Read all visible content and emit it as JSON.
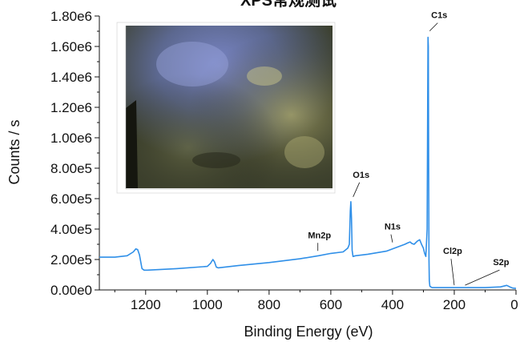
{
  "chart_data": {
    "type": "line",
    "title": "XPS常规测试",
    "xlabel": "Binding Energy (eV)",
    "ylabel": "Counts / s",
    "xlim": [
      1350,
      0
    ],
    "ylim": [
      0,
      1800000
    ],
    "x_reversed": true,
    "grid": false,
    "legend": "none",
    "x_ticks": [
      {
        "value": 1200,
        "label": "1200"
      },
      {
        "value": 1000,
        "label": "1000"
      },
      {
        "value": 800,
        "label": "800"
      },
      {
        "value": 600,
        "label": "600"
      },
      {
        "value": 400,
        "label": "400"
      },
      {
        "value": 200,
        "label": "200"
      },
      {
        "value": 0,
        "label": "0"
      }
    ],
    "y_ticks": [
      {
        "value": 0,
        "label": "0.00e0"
      },
      {
        "value": 200000,
        "label": "2.00e5"
      },
      {
        "value": 400000,
        "label": "4.00e5"
      },
      {
        "value": 600000,
        "label": "6.00e5"
      },
      {
        "value": 800000,
        "label": "8.00e5"
      },
      {
        "value": 1000000,
        "label": "1.00e6"
      },
      {
        "value": 1200000,
        "label": "1.20e6"
      },
      {
        "value": 1400000,
        "label": "1.40e6"
      },
      {
        "value": 1600000,
        "label": "1.60e6"
      },
      {
        "value": 1800000,
        "label": "1.80e6"
      }
    ],
    "series": [
      {
        "color": "#2f8fe8",
        "x": [
          1350,
          1300,
          1260,
          1240,
          1232,
          1226,
          1220,
          1212,
          1205,
          1195,
          1100,
          1000,
          990,
          982,
          977,
          971,
          965,
          900,
          800,
          700,
          640,
          600,
          560,
          545,
          540,
          537,
          535,
          533,
          531,
          528,
          520,
          480,
          420,
          400,
          360,
          350,
          343,
          337,
          330,
          320,
          312,
          306,
          300,
          296,
          292,
          288,
          286,
          285,
          284,
          283,
          282,
          281,
          279,
          276,
          272,
          260,
          200,
          150,
          100,
          50,
          30,
          20,
          10,
          0
        ],
        "y": [
          215000,
          215000,
          225000,
          250000,
          270000,
          265000,
          230000,
          140000,
          130000,
          130000,
          140000,
          155000,
          175000,
          200000,
          185000,
          150000,
          145000,
          160000,
          180000,
          205000,
          225000,
          240000,
          250000,
          275000,
          300000,
          520000,
          580000,
          470000,
          260000,
          220000,
          225000,
          235000,
          255000,
          270000,
          300000,
          310000,
          315000,
          305000,
          300000,
          320000,
          330000,
          300000,
          275000,
          240000,
          220000,
          400000,
          1250000,
          1660000,
          1600000,
          800000,
          200000,
          60000,
          25000,
          20000,
          15000,
          15000,
          15000,
          15000,
          15000,
          20000,
          30000,
          20000,
          12000,
          10000
        ]
      }
    ],
    "annotations": [
      {
        "text": "C1s",
        "x": 285,
        "y": 1660000
      },
      {
        "text": "O1s",
        "x": 533,
        "y": 580000
      },
      {
        "text": "N1s",
        "x": 400,
        "y": 270000
      },
      {
        "text": "Mn2p",
        "x": 642,
        "y": 225000
      },
      {
        "text": "Cl2p",
        "x": 200,
        "y": 15000
      },
      {
        "text": "S2p",
        "x": 165,
        "y": 15000
      }
    ]
  },
  "inset_image": {
    "description_icon": "sample-micrograph",
    "colors": [
      "#c5c5a0",
      "#6f7ba8",
      "#3e402a",
      "#1a1c14"
    ]
  }
}
